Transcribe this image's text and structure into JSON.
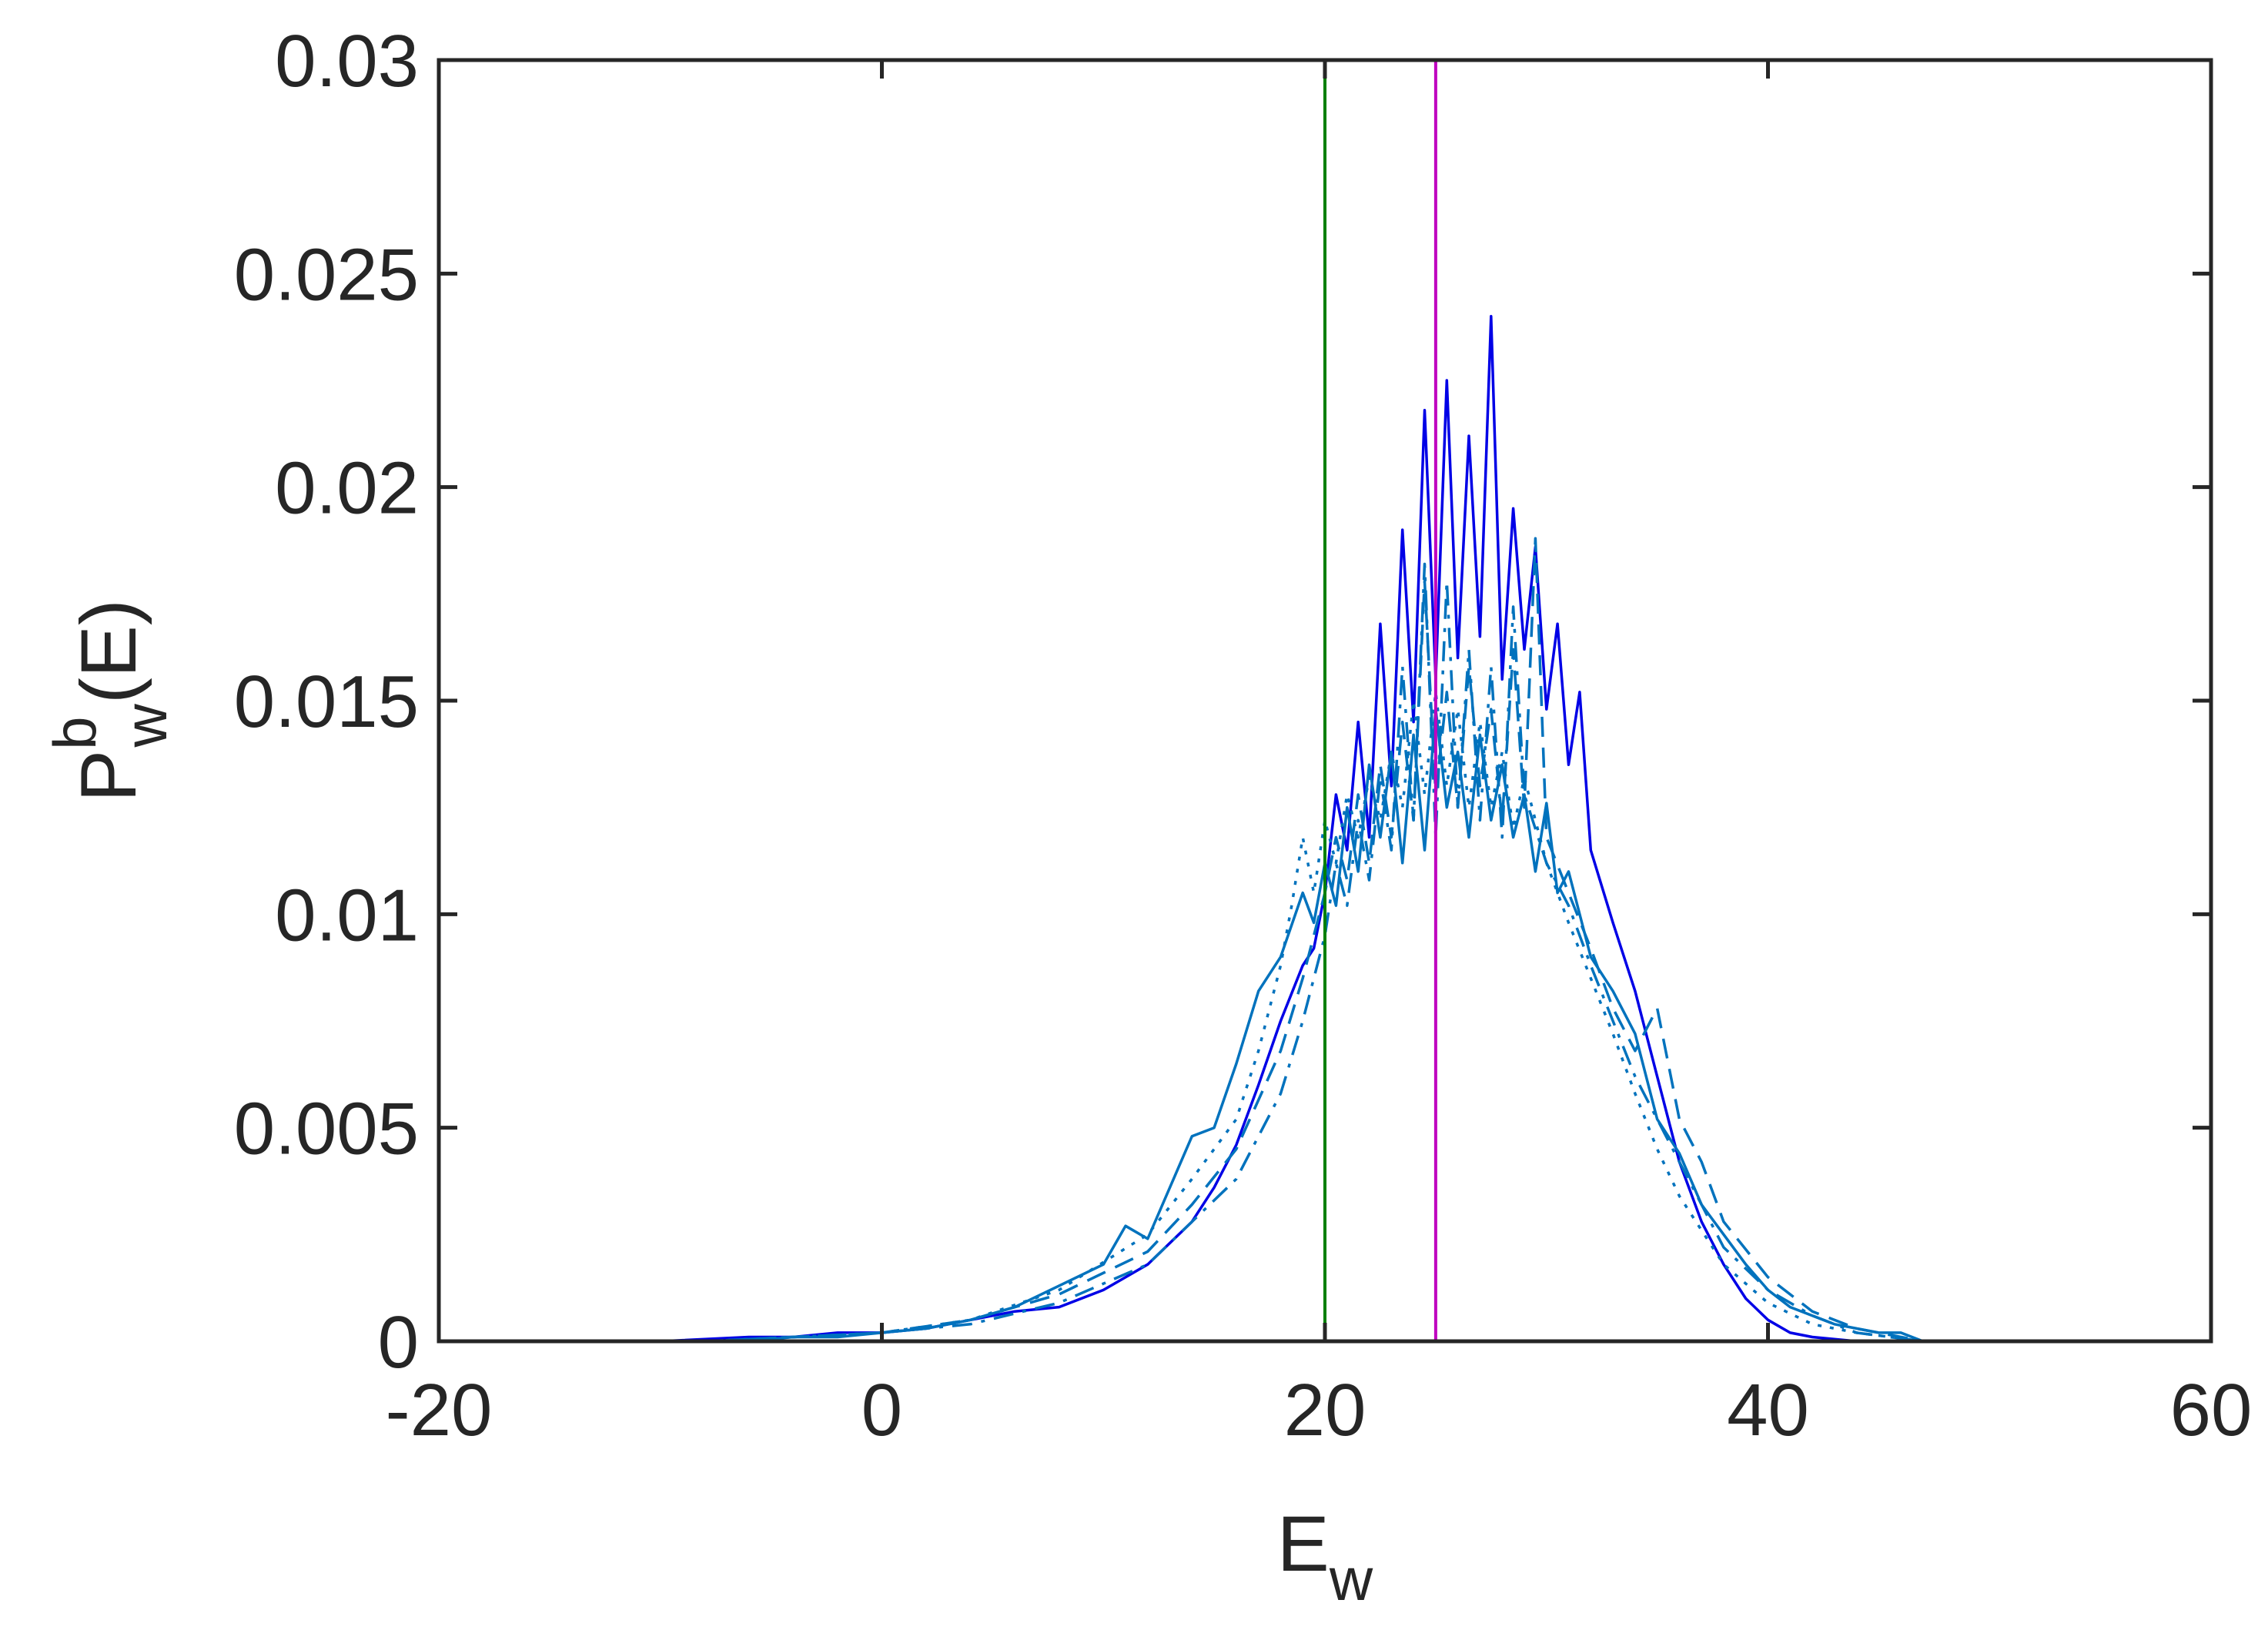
{
  "chart_data": {
    "type": "line",
    "xlabel": {
      "base": "E",
      "sub": "w"
    },
    "ylabel": {
      "base": "P",
      "sup": "b",
      "sub": "w",
      "tail": "(E)"
    },
    "xlim": [
      -20,
      60
    ],
    "ylim": [
      0,
      0.03
    ],
    "x_ticks": [
      -20,
      0,
      20,
      40,
      60
    ],
    "x_tick_labels": [
      "-20",
      "0",
      "20",
      "40",
      "60"
    ],
    "y_ticks": [
      0,
      0.005,
      0.01,
      0.015,
      0.02,
      0.025,
      0.03
    ],
    "y_tick_labels": [
      "0",
      "0.005",
      "0.01",
      "0.015",
      "0.02",
      "0.025",
      "0.03"
    ],
    "grid": false,
    "box": true,
    "vertical_lines": [
      {
        "x": 20,
        "color": "#007f00"
      },
      {
        "x": 25,
        "color": "#bf00bf"
      }
    ],
    "series": [
      {
        "color": "#0000e6",
        "style": "solid",
        "x": [
          -14,
          -10,
          -6,
          -4,
          -2,
          0,
          2,
          4,
          6,
          8,
          10,
          12,
          14,
          15,
          16,
          17,
          18,
          19,
          19.5,
          20,
          20.5,
          21,
          21.5,
          22,
          22.5,
          23,
          23.5,
          24,
          24.5,
          25,
          25.5,
          26,
          26.5,
          27,
          27.5,
          28,
          28.5,
          29,
          29.5,
          30,
          30.5,
          31,
          31.5,
          32,
          33,
          34,
          35,
          36,
          37,
          38,
          39,
          40,
          41,
          42,
          44,
          47
        ],
        "y": [
          0,
          0,
          0.0001,
          0.0001,
          0.0002,
          0.0002,
          0.0003,
          0.0005,
          0.0007,
          0.0008,
          0.0012,
          0.0018,
          0.0028,
          0.0036,
          0.0046,
          0.006,
          0.0075,
          0.0088,
          0.0092,
          0.0105,
          0.0128,
          0.0115,
          0.0145,
          0.0118,
          0.0168,
          0.013,
          0.019,
          0.0145,
          0.0218,
          0.0155,
          0.0225,
          0.016,
          0.0212,
          0.0165,
          0.024,
          0.0155,
          0.0195,
          0.0162,
          0.0186,
          0.0148,
          0.0168,
          0.0135,
          0.0152,
          0.0115,
          0.0098,
          0.0082,
          0.0062,
          0.0042,
          0.0028,
          0.0018,
          0.001,
          0.0005,
          0.0002,
          0.0001,
          0,
          0
        ]
      },
      {
        "color": "#0072bd",
        "style": "solid",
        "x": [
          -14,
          -10,
          -6,
          -4,
          -2,
          0,
          2,
          4,
          6,
          8,
          10,
          11,
          12,
          14,
          15,
          16,
          17,
          18,
          19,
          19.5,
          20,
          20.5,
          21,
          21.5,
          22,
          22.5,
          23,
          23.5,
          24,
          24.5,
          25,
          25.5,
          26,
          26.5,
          27,
          27.5,
          28,
          28.5,
          29,
          29.5,
          30,
          30.5,
          31,
          32,
          33,
          34,
          35,
          36,
          37,
          38,
          39,
          40,
          41,
          42,
          43,
          44,
          45,
          46,
          47
        ],
        "y": [
          0,
          0,
          0,
          0.0001,
          0.0001,
          0.0002,
          0.0003,
          0.0005,
          0.0008,
          0.0013,
          0.0018,
          0.0027,
          0.0024,
          0.0048,
          0.005,
          0.0065,
          0.0082,
          0.009,
          0.0105,
          0.0098,
          0.0112,
          0.0102,
          0.0125,
          0.011,
          0.0135,
          0.0118,
          0.0138,
          0.0112,
          0.0142,
          0.0115,
          0.0148,
          0.0125,
          0.0138,
          0.0118,
          0.0142,
          0.0122,
          0.0135,
          0.0118,
          0.0128,
          0.011,
          0.0126,
          0.0105,
          0.011,
          0.009,
          0.0082,
          0.0072,
          0.0052,
          0.0044,
          0.0032,
          0.0025,
          0.0018,
          0.0012,
          0.0008,
          0.0006,
          0.0004,
          0.0003,
          0.0002,
          0.0002,
          0
        ]
      },
      {
        "color": "#0072bd",
        "style": "dashed",
        "x": [
          -14,
          -8,
          -4,
          0,
          4,
          8,
          12,
          14,
          16,
          18,
          19,
          20,
          20.5,
          21,
          21.5,
          22,
          22.5,
          23,
          23.5,
          24,
          24.5,
          25,
          25.5,
          26,
          26.5,
          27,
          27.5,
          28,
          28.5,
          29,
          29.5,
          30,
          31,
          32,
          33,
          34,
          35,
          36,
          37,
          38,
          40,
          42,
          44,
          47
        ],
        "y": [
          0,
          0,
          0.0001,
          0.0002,
          0.0005,
          0.0011,
          0.0021,
          0.0032,
          0.0045,
          0.0068,
          0.0085,
          0.0105,
          0.0118,
          0.0108,
          0.0128,
          0.0112,
          0.0135,
          0.0118,
          0.0145,
          0.0122,
          0.0178,
          0.0128,
          0.0152,
          0.0125,
          0.0158,
          0.013,
          0.0148,
          0.0122,
          0.0162,
          0.0125,
          0.0188,
          0.0118,
          0.0105,
          0.0092,
          0.0078,
          0.0068,
          0.0078,
          0.0052,
          0.0042,
          0.0028,
          0.0015,
          0.0007,
          0.0003,
          0
        ]
      },
      {
        "color": "#0072bd",
        "style": "dotted",
        "x": [
          -14,
          -8,
          -4,
          0,
          4,
          8,
          12,
          14,
          16,
          17,
          18,
          18.5,
          19,
          19.5,
          20,
          20.5,
          21,
          21.5,
          22,
          22.5,
          23,
          23.5,
          24,
          24.5,
          25,
          25.5,
          26,
          26.5,
          27,
          27.5,
          28,
          28.5,
          29,
          30,
          31,
          32,
          33,
          34,
          35,
          36,
          38,
          40,
          42,
          44,
          47
        ],
        "y": [
          0,
          0,
          0.0001,
          0.0002,
          0.0005,
          0.0012,
          0.0025,
          0.0038,
          0.0052,
          0.0068,
          0.0088,
          0.0102,
          0.0118,
          0.0105,
          0.0122,
          0.0112,
          0.0128,
          0.0118,
          0.0132,
          0.0122,
          0.0138,
          0.0125,
          0.015,
          0.0128,
          0.0152,
          0.013,
          0.0148,
          0.0125,
          0.0145,
          0.0125,
          0.0138,
          0.012,
          0.0132,
          0.0112,
          0.0098,
          0.0085,
          0.0072,
          0.0058,
          0.0045,
          0.0034,
          0.0018,
          0.0009,
          0.0004,
          0.0002,
          0
        ]
      },
      {
        "color": "#0072bd",
        "style": "dashdot",
        "x": [
          -14,
          -8,
          -4,
          0,
          4,
          8,
          12,
          14,
          16,
          18,
          19,
          20,
          20.5,
          21,
          21.5,
          22,
          22.5,
          23,
          23.5,
          24,
          24.5,
          25,
          25.5,
          26,
          26.5,
          27,
          27.5,
          28,
          28.5,
          29,
          30,
          31,
          32,
          33,
          34,
          35,
          36,
          37,
          38,
          40,
          42,
          44,
          47
        ],
        "y": [
          0,
          0,
          0.0001,
          0.0002,
          0.0004,
          0.0009,
          0.0018,
          0.0028,
          0.0038,
          0.0058,
          0.0075,
          0.0095,
          0.0112,
          0.0102,
          0.0122,
          0.0108,
          0.0132,
          0.0115,
          0.0158,
          0.0122,
          0.0182,
          0.0118,
          0.0178,
          0.0125,
          0.0162,
          0.0122,
          0.0158,
          0.0118,
          0.0172,
          0.0128,
          0.0112,
          0.0102,
          0.0088,
          0.0075,
          0.0062,
          0.0052,
          0.0042,
          0.0032,
          0.0022,
          0.0012,
          0.0006,
          0.0002,
          0
        ]
      }
    ]
  }
}
